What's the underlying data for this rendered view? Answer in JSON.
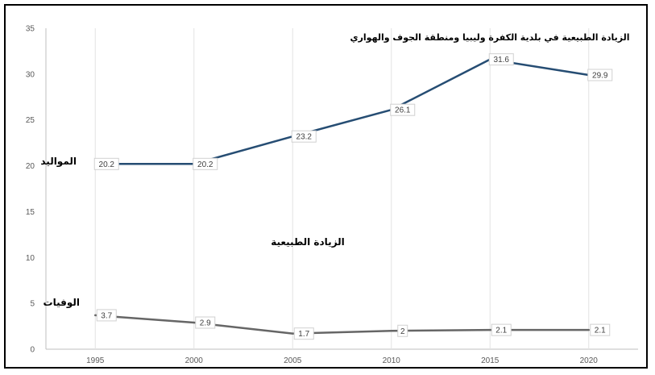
{
  "chart_data": {
    "type": "line",
    "title": "الزيادة الطبيعية في بلدية الكفرة وليبيا ومنطقة الجوف والهواري",
    "categories": [
      "1995",
      "2000",
      "2005",
      "2010",
      "2015",
      "2020"
    ],
    "series": [
      {
        "name": "المواليد",
        "values": [
          20.2,
          20.2,
          23.2,
          26.1,
          31.6,
          29.9
        ],
        "labels": [
          "20.2",
          "20.2",
          "23.2",
          "26.1",
          "31.6",
          "29.9"
        ],
        "color": "#264d73"
      },
      {
        "name": "الوفيات",
        "values": [
          3.7,
          2.9,
          1.7,
          2,
          2.1,
          2.1
        ],
        "labels": [
          "3.7",
          "2.9",
          "1.7",
          "2",
          "2.1",
          "2.1"
        ],
        "color": "#666666"
      }
    ],
    "annotation": "الزيادة الطبيعية",
    "ylim": [
      0,
      35
    ],
    "yticks": [
      "0",
      "5",
      "10",
      "15",
      "20",
      "25",
      "30",
      "35"
    ],
    "grid": "vertical",
    "legend": "none"
  }
}
